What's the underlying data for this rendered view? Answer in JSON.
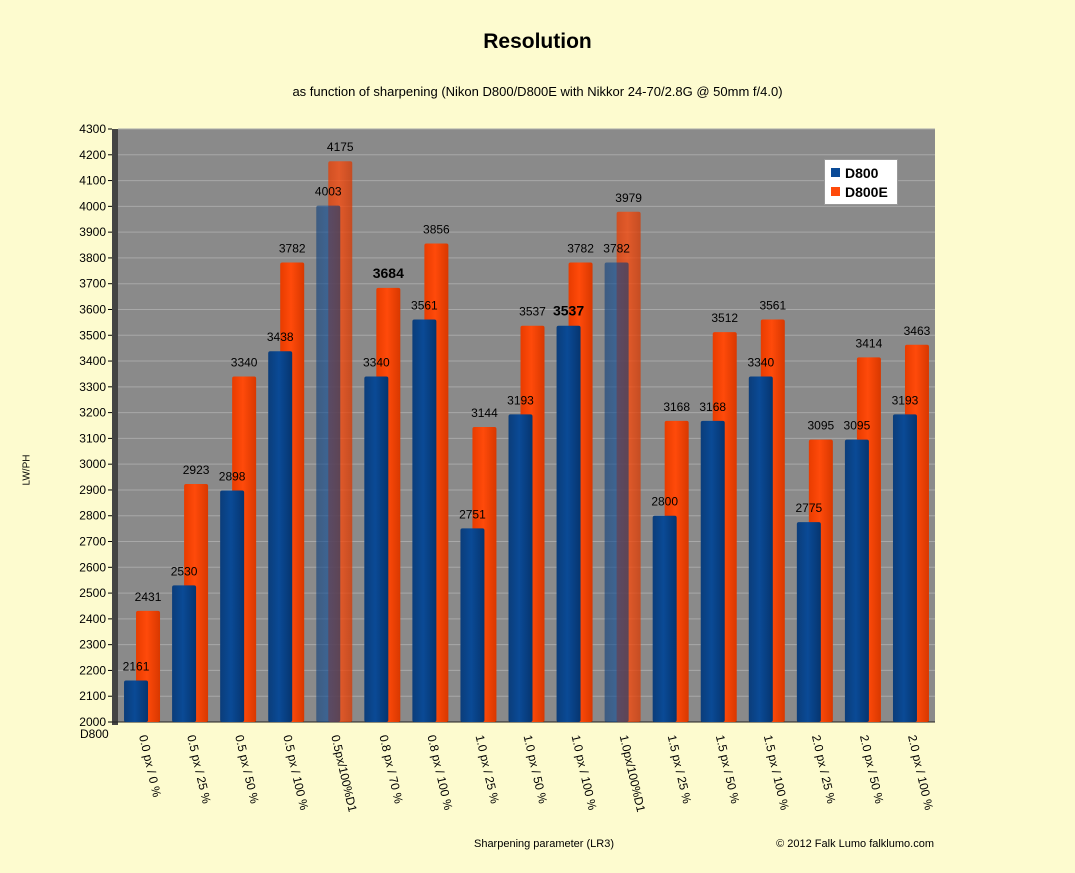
{
  "chart_data": {
    "type": "bar",
    "title": "Resolution",
    "subtitle": "as function of sharpening (Nikon D800/D800E with Nikkor 24-70/2.8G @ 50mm f/4.0)",
    "ylabel": "LW/PH",
    "xlabel": "Sharpening parameter (LR3)",
    "credit": "© 2012 Falk Lumo falklumo.com",
    "corner_label": "D800",
    "ylim": [
      2000,
      4300
    ],
    "ytick_step": 100,
    "grid": true,
    "legend_position": "top-right",
    "categories": [
      "0.0 px / 0 %",
      "0.5 px / 25 %",
      "0.5 px / 50 %",
      "0.5 px / 100 %",
      "0.5px/100%D1",
      "0.8 px / 70 %",
      "0.8 px / 100 %",
      "1.0 px / 25 %",
      "1.0 px / 50 %",
      "1.0 px / 100 %",
      "1.0px/100%D1",
      "1.5 px / 25 %",
      "1.5 px / 50 %",
      "1.5 px / 100 %",
      "2.0 px / 25 %",
      "2.0 px / 50 %",
      "2.0 px / 100 %"
    ],
    "series": [
      {
        "name": "D800",
        "color": "#0a4a96",
        "values": [
          2161,
          2530,
          2898,
          3438,
          4003,
          3340,
          3561,
          2751,
          3193,
          3537,
          3782,
          2800,
          3168,
          3340,
          2775,
          3095,
          3193
        ]
      },
      {
        "name": "D800E",
        "color": "#ff4a0a",
        "values": [
          2431,
          2923,
          3340,
          3782,
          4175,
          3684,
          3856,
          3144,
          3537,
          3782,
          3979,
          3168,
          3512,
          3561,
          3095,
          3414,
          3463
        ]
      }
    ],
    "highlighted_categories": [
      "0.5px/100%D1",
      "1.0px/100%D1"
    ],
    "bold_labels": [
      {
        "series": "D800E",
        "category": "0.8 px / 70 %"
      },
      {
        "series": "D800",
        "category": "1.0 px / 100 %"
      }
    ],
    "colors": {
      "plot_background": "#8a8a8a",
      "page_background": "#fdfbcf",
      "wall": "#444444"
    }
  }
}
